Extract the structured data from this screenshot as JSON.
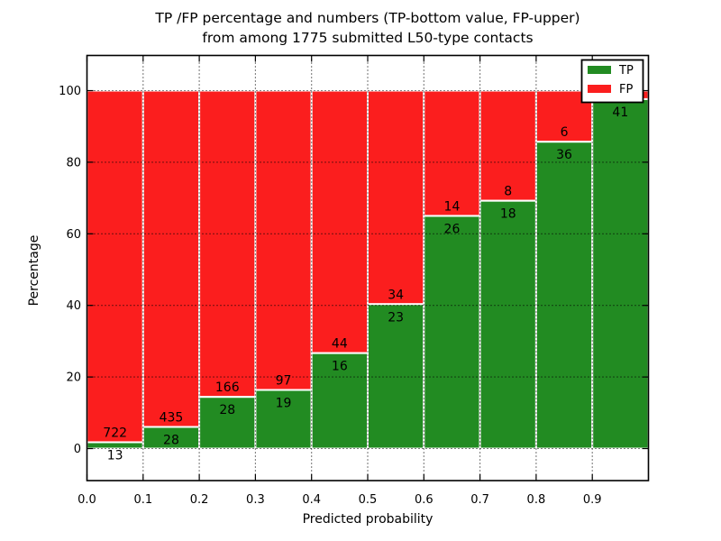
{
  "chart_data": {
    "type": "bar",
    "stacked": true,
    "title_line1": "TP /FP percentage and numbers (TP-bottom value, FP-upper)",
    "title_line2": "from among 1775 submitted L50-type contacts",
    "xlabel": "Predicted probability",
    "ylabel": "Percentage",
    "x_ticks": [
      "0.0",
      "0.1",
      "0.2",
      "0.3",
      "0.4",
      "0.5",
      "0.6",
      "0.7",
      "0.8",
      "0.9"
    ],
    "y_ticks": [
      0,
      20,
      40,
      60,
      80,
      100
    ],
    "xlim": [
      0.0,
      1.0
    ],
    "ylim": [
      -10,
      110
    ],
    "grid": true,
    "legend_position": "upper right",
    "legend": [
      {
        "label": "TP",
        "color": "#228b22"
      },
      {
        "label": "FP",
        "color": "#fb1e1e"
      }
    ],
    "bins": [
      {
        "range": [
          0.0,
          0.1
        ],
        "tp": 13,
        "fp": 722,
        "tp_pct": 1.77
      },
      {
        "range": [
          0.1,
          0.2
        ],
        "tp": 28,
        "fp": 435,
        "tp_pct": 6.05
      },
      {
        "range": [
          0.2,
          0.3
        ],
        "tp": 28,
        "fp": 166,
        "tp_pct": 14.43
      },
      {
        "range": [
          0.3,
          0.4
        ],
        "tp": 19,
        "fp": 97,
        "tp_pct": 16.38
      },
      {
        "range": [
          0.4,
          0.5
        ],
        "tp": 16,
        "fp": 44,
        "tp_pct": 26.67
      },
      {
        "range": [
          0.5,
          0.6
        ],
        "tp": 23,
        "fp": 34,
        "tp_pct": 40.35
      },
      {
        "range": [
          0.6,
          0.7
        ],
        "tp": 26,
        "fp": 14,
        "tp_pct": 65.0
      },
      {
        "range": [
          0.7,
          0.8
        ],
        "tp": 18,
        "fp": 8,
        "tp_pct": 69.23
      },
      {
        "range": [
          0.8,
          0.9
        ],
        "tp": 36,
        "fp": 6,
        "tp_pct": 85.71
      },
      {
        "range": [
          0.9,
          1.0
        ],
        "tp": 41,
        "fp": null,
        "tp_pct": 97.62
      }
    ],
    "colors": {
      "tp": "#228b22",
      "fp": "#fb1e1e",
      "bar_edge": "#ffffff",
      "grid": "#000000",
      "axis": "#000000",
      "background": "#ffffff"
    }
  }
}
